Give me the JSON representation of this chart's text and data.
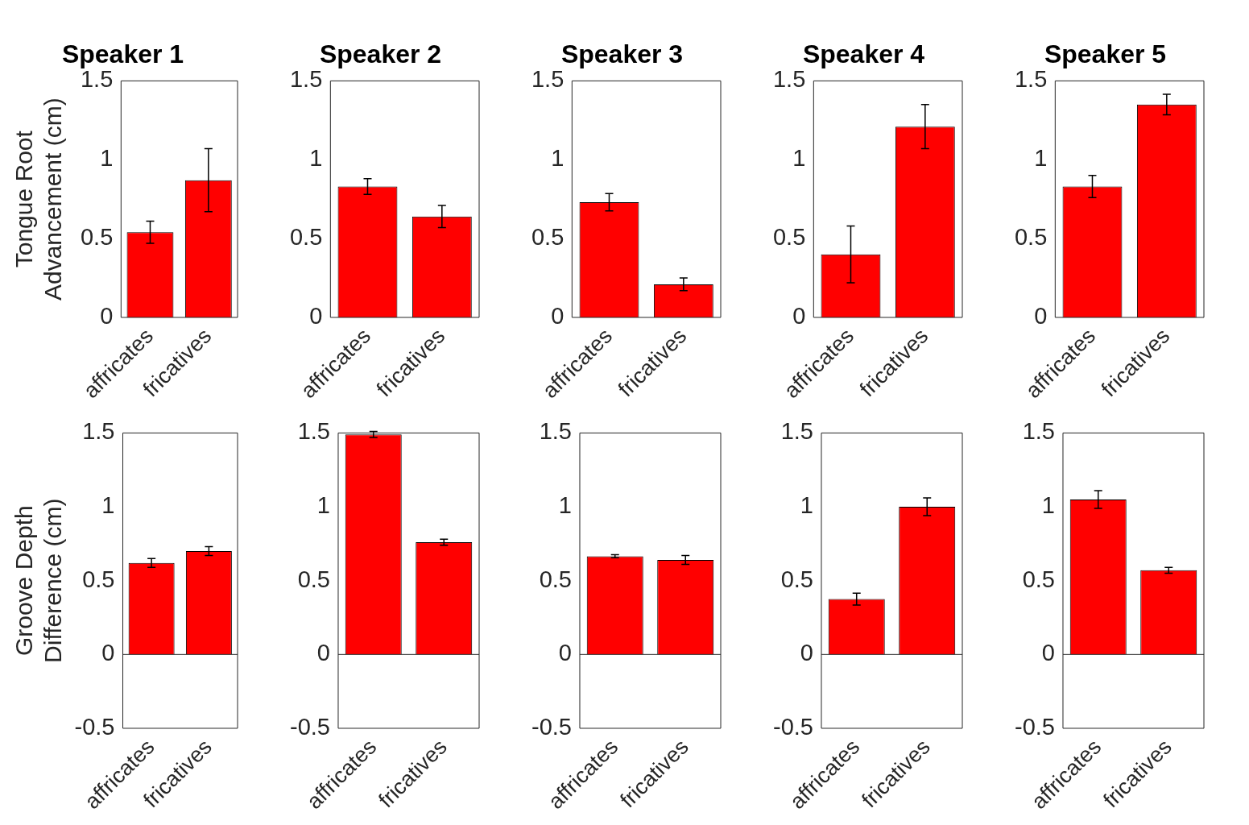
{
  "chart_data": [
    {
      "type": "bar",
      "title": "Speaker 1",
      "ylabel": "Tongue Root\nAdvancement (cm)",
      "categories": [
        "affricates",
        "fricatives"
      ],
      "values": [
        0.54,
        0.87
      ],
      "errors": [
        0.07,
        0.2
      ],
      "color": "#ff0000",
      "ylim": [
        0,
        1.5
      ],
      "yticks": [
        0,
        0.5,
        1,
        1.5
      ],
      "grid": false,
      "legend": false
    },
    {
      "type": "bar",
      "title": "Speaker 2",
      "categories": [
        "affricates",
        "fricatives"
      ],
      "values": [
        0.83,
        0.64
      ],
      "errors": [
        0.05,
        0.07
      ],
      "color": "#ff0000",
      "ylim": [
        0,
        1.5
      ],
      "yticks": [
        0,
        0.5,
        1,
        1.5
      ],
      "grid": false,
      "legend": false
    },
    {
      "type": "bar",
      "title": "Speaker 3",
      "categories": [
        "affricates",
        "fricatives"
      ],
      "values": [
        0.73,
        0.21
      ],
      "errors": [
        0.055,
        0.04
      ],
      "color": "#ff0000",
      "ylim": [
        0,
        1.5
      ],
      "yticks": [
        0,
        0.5,
        1,
        1.5
      ],
      "grid": false,
      "legend": false
    },
    {
      "type": "bar",
      "title": "Speaker 4",
      "categories": [
        "affricates",
        "fricatives"
      ],
      "values": [
        0.4,
        1.21
      ],
      "errors": [
        0.18,
        0.14
      ],
      "color": "#ff0000",
      "ylim": [
        0,
        1.5
      ],
      "yticks": [
        0,
        0.5,
        1,
        1.5
      ],
      "grid": false,
      "legend": false
    },
    {
      "type": "bar",
      "title": "Speaker 5",
      "categories": [
        "affricates",
        "fricatives"
      ],
      "values": [
        0.83,
        1.35
      ],
      "errors": [
        0.07,
        0.065
      ],
      "color": "#ff0000",
      "ylim": [
        0,
        1.5
      ],
      "yticks": [
        0,
        0.5,
        1,
        1.5
      ],
      "grid": false,
      "legend": false
    },
    {
      "type": "bar",
      "ylabel": "Groove Depth\nDifference (cm)",
      "categories": [
        "affricates",
        "fricatives"
      ],
      "ref_lines": [
        {
          "axis": "y",
          "value": 0,
          "color": "#262626"
        }
      ],
      "values": [
        0.62,
        0.7
      ],
      "errors": [
        0.03,
        0.03
      ],
      "color": "#ff0000",
      "ylim": [
        -0.5,
        1.5
      ],
      "yticks": [
        -0.5,
        0,
        0.5,
        1,
        1.5
      ],
      "grid": false,
      "legend": false
    },
    {
      "type": "bar",
      "categories": [
        "affricates",
        "fricatives"
      ],
      "ref_lines": [
        {
          "axis": "y",
          "value": 0,
          "color": "#262626"
        }
      ],
      "values": [
        1.49,
        0.76
      ],
      "errors": [
        0.02,
        0.02
      ],
      "color": "#ff0000",
      "ylim": [
        -0.5,
        1.5
      ],
      "yticks": [
        -0.5,
        0,
        0.5,
        1,
        1.5
      ],
      "grid": false,
      "legend": false
    },
    {
      "type": "bar",
      "categories": [
        "affricates",
        "fricatives"
      ],
      "ref_lines": [
        {
          "axis": "y",
          "value": 0,
          "color": "#262626"
        }
      ],
      "values": [
        0.665,
        0.64
      ],
      "errors": [
        0.01,
        0.03
      ],
      "color": "#ff0000",
      "ylim": [
        -0.5,
        1.5
      ],
      "yticks": [
        -0.5,
        0,
        0.5,
        1,
        1.5
      ],
      "grid": false,
      "legend": false
    },
    {
      "type": "bar",
      "categories": [
        "affricates",
        "fricatives"
      ],
      "ref_lines": [
        {
          "axis": "y",
          "value": 0,
          "color": "#262626"
        }
      ],
      "values": [
        0.375,
        1.0
      ],
      "errors": [
        0.04,
        0.06
      ],
      "color": "#ff0000",
      "ylim": [
        -0.5,
        1.5
      ],
      "yticks": [
        -0.5,
        0,
        0.5,
        1,
        1.5
      ],
      "grid": false,
      "legend": false
    },
    {
      "type": "bar",
      "categories": [
        "affricates",
        "fricatives"
      ],
      "ref_lines": [
        {
          "axis": "y",
          "value": 0,
          "color": "#262626"
        }
      ],
      "values": [
        1.05,
        0.57
      ],
      "errors": [
        0.06,
        0.02
      ],
      "color": "#ff0000",
      "ylim": [
        -0.5,
        1.5
      ],
      "yticks": [
        -0.5,
        0,
        0.5,
        1,
        1.5
      ],
      "grid": false,
      "legend": false
    }
  ]
}
